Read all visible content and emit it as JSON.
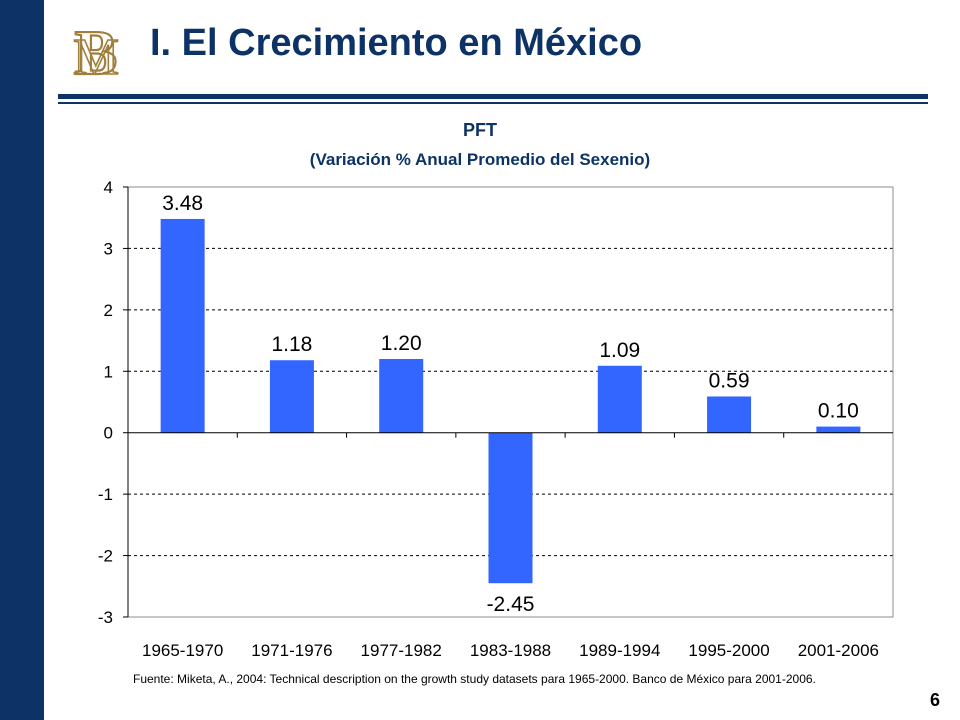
{
  "slide": {
    "title": "I. El Crecimiento en México",
    "page_number": "6",
    "source_note": "Fuente: Miketa, A., 2004: Technical description on the growth study datasets para 1965-2000. Banco de México para 2001-2006.",
    "logo": {
      "name": "banco-de-mexico-monogram",
      "text": "BM"
    }
  },
  "colors": {
    "sidebar": "#0d3366",
    "title": "#0d3366",
    "bar": "#3366ff",
    "logo": "#a07f3c"
  },
  "chart_data": {
    "type": "bar",
    "title": "PFT",
    "subtitle": "(Variación % Anual Promedio del Sexenio)",
    "xlabel": "",
    "ylabel": "",
    "categories": [
      "1965-1970",
      "1971-1976",
      "1977-1982",
      "1983-1988",
      "1989-1994",
      "1995-2000",
      "2001-2006"
    ],
    "values": [
      3.48,
      1.18,
      1.2,
      -2.45,
      1.09,
      0.59,
      0.1
    ],
    "data_labels": [
      "3.48",
      "1.18",
      "1.20",
      "-2.45",
      "1.09",
      "0.59",
      "0.10"
    ],
    "ylim": [
      -3,
      4
    ],
    "yticks": [
      4,
      3,
      2,
      1,
      0,
      -1,
      -2,
      -3
    ],
    "grid": "horizontal dashed",
    "legend": "none"
  }
}
